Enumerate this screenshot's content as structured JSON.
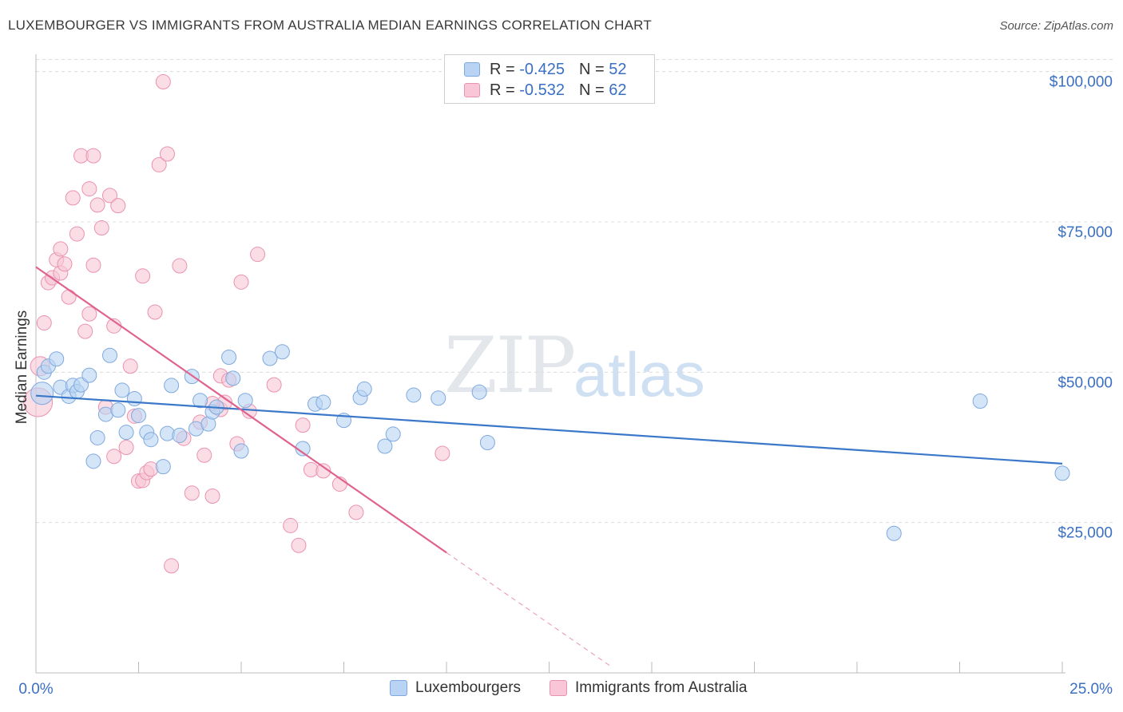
{
  "header": {
    "title": "LUXEMBOURGER VS IMMIGRANTS FROM AUSTRALIA MEDIAN EARNINGS CORRELATION CHART",
    "source": "Source: ZipAtlas.com"
  },
  "watermark": {
    "part1": "ZIP",
    "part2": "atlas"
  },
  "legend": {
    "rows": [
      {
        "r_label": "R =",
        "r_value": "-0.425",
        "n_label": "N =",
        "n_value": "52"
      },
      {
        "r_label": "R =",
        "r_value": "-0.532",
        "n_label": "N =",
        "n_value": "62"
      }
    ]
  },
  "colors": {
    "blue_fill": "#b8d3f3",
    "blue_stroke": "#7fa9de",
    "blue_line": "#3b78c9",
    "pink_fill": "#f8c6d6",
    "pink_stroke": "#ea92b0",
    "pink_line": "#e0628e",
    "axis_label": "#3a6fc4",
    "grid": "#dcdcdc"
  },
  "chart_data": {
    "type": "scatter",
    "title": "LUXEMBOURGER VS IMMIGRANTS FROM AUSTRALIA MEDIAN EARNINGS CORRELATION CHART",
    "xlabel": "",
    "ylabel": "Median Earnings",
    "xlim": [
      0,
      25
    ],
    "ylim": [
      0,
      105000
    ],
    "x_tick_labels": [
      {
        "x": 0,
        "label": "0.0%"
      },
      {
        "x": 25,
        "label": "25.0%"
      }
    ],
    "y_ticks": [
      {
        "y": 25000,
        "label": "$25,000"
      },
      {
        "y": 50000,
        "label": "$50,000"
      },
      {
        "y": 75000,
        "label": "$75,000"
      },
      {
        "y": 100000,
        "label": "$100,000"
      }
    ],
    "grid": true,
    "legend_position": "bottom-center",
    "series": [
      {
        "name": "Luxembourgers",
        "r": -0.425,
        "n": 52,
        "trend": {
          "x": [
            0,
            25
          ],
          "y": [
            46100,
            34800
          ]
        },
        "points": [
          [
            0.15,
            46500
          ],
          [
            0.2,
            50000
          ],
          [
            0.3,
            51000
          ],
          [
            0.5,
            52200
          ],
          [
            0.6,
            47500
          ],
          [
            0.8,
            46000
          ],
          [
            0.9,
            47800
          ],
          [
            1.0,
            46800
          ],
          [
            1.1,
            47900
          ],
          [
            1.3,
            49500
          ],
          [
            1.4,
            35200
          ],
          [
            1.5,
            39100
          ],
          [
            1.7,
            43000
          ],
          [
            1.8,
            52800
          ],
          [
            2.0,
            43700
          ],
          [
            2.1,
            47000
          ],
          [
            2.2,
            40000
          ],
          [
            2.4,
            45600
          ],
          [
            2.5,
            42800
          ],
          [
            2.7,
            40000
          ],
          [
            2.8,
            38800
          ],
          [
            3.1,
            34300
          ],
          [
            3.2,
            39800
          ],
          [
            3.3,
            47800
          ],
          [
            3.5,
            39500
          ],
          [
            3.8,
            49300
          ],
          [
            3.9,
            40600
          ],
          [
            4.0,
            45300
          ],
          [
            4.2,
            41400
          ],
          [
            4.3,
            43400
          ],
          [
            4.4,
            44200
          ],
          [
            4.7,
            52500
          ],
          [
            4.8,
            49000
          ],
          [
            5.0,
            36900
          ],
          [
            5.1,
            45300
          ],
          [
            5.7,
            52300
          ],
          [
            6.0,
            53400
          ],
          [
            6.5,
            37300
          ],
          [
            6.8,
            44700
          ],
          [
            7.0,
            45000
          ],
          [
            7.5,
            42000
          ],
          [
            7.9,
            45800
          ],
          [
            8.0,
            47200
          ],
          [
            8.5,
            37700
          ],
          [
            8.7,
            39700
          ],
          [
            9.2,
            46200
          ],
          [
            9.8,
            45700
          ],
          [
            10.8,
            46700
          ],
          [
            11.0,
            38300
          ],
          [
            23.0,
            45200
          ],
          [
            20.9,
            23200
          ],
          [
            25.0,
            33200
          ]
        ]
      },
      {
        "name": "Immigrants from Australia",
        "r": -0.532,
        "n": 62,
        "trend": {
          "x": [
            0,
            10
          ],
          "y": [
            67500,
            20000
          ]
        },
        "trend_ext": {
          "x": [
            10,
            14
          ],
          "y": [
            20000,
            1100
          ]
        },
        "points": [
          [
            0.05,
            45000
          ],
          [
            0.1,
            51000
          ],
          [
            0.2,
            58200
          ],
          [
            0.3,
            64900
          ],
          [
            0.4,
            65700
          ],
          [
            0.5,
            68700
          ],
          [
            0.6,
            66500
          ],
          [
            0.6,
            70500
          ],
          [
            0.7,
            68000
          ],
          [
            0.8,
            62500
          ],
          [
            0.9,
            79000
          ],
          [
            1.0,
            73000
          ],
          [
            1.1,
            86000
          ],
          [
            1.2,
            56800
          ],
          [
            1.3,
            59700
          ],
          [
            1.3,
            80500
          ],
          [
            1.4,
            86000
          ],
          [
            1.4,
            67800
          ],
          [
            1.5,
            77800
          ],
          [
            1.6,
            74000
          ],
          [
            1.7,
            44200
          ],
          [
            1.8,
            79400
          ],
          [
            1.9,
            36000
          ],
          [
            1.9,
            57700
          ],
          [
            2.0,
            77700
          ],
          [
            2.2,
            37500
          ],
          [
            2.3,
            51000
          ],
          [
            2.4,
            42700
          ],
          [
            2.5,
            31900
          ],
          [
            2.6,
            32000
          ],
          [
            2.6,
            66000
          ],
          [
            2.7,
            33300
          ],
          [
            2.8,
            33900
          ],
          [
            2.9,
            60000
          ],
          [
            3.0,
            84500
          ],
          [
            3.1,
            98300
          ],
          [
            3.2,
            86300
          ],
          [
            3.3,
            17800
          ],
          [
            3.5,
            67700
          ],
          [
            3.6,
            39000
          ],
          [
            3.8,
            29900
          ],
          [
            4.0,
            41700
          ],
          [
            4.1,
            36200
          ],
          [
            4.3,
            29400
          ],
          [
            4.5,
            49400
          ],
          [
            4.5,
            43800
          ],
          [
            4.6,
            45000
          ],
          [
            4.7,
            48700
          ],
          [
            4.9,
            38100
          ],
          [
            5.0,
            65000
          ],
          [
            5.2,
            43500
          ],
          [
            5.4,
            69600
          ],
          [
            5.8,
            47900
          ],
          [
            6.2,
            24500
          ],
          [
            6.4,
            21200
          ],
          [
            6.5,
            41200
          ],
          [
            6.7,
            33800
          ],
          [
            7.0,
            33600
          ],
          [
            7.4,
            31400
          ],
          [
            7.8,
            26700
          ],
          [
            9.9,
            36500
          ],
          [
            4.3,
            44800
          ]
        ]
      }
    ]
  }
}
